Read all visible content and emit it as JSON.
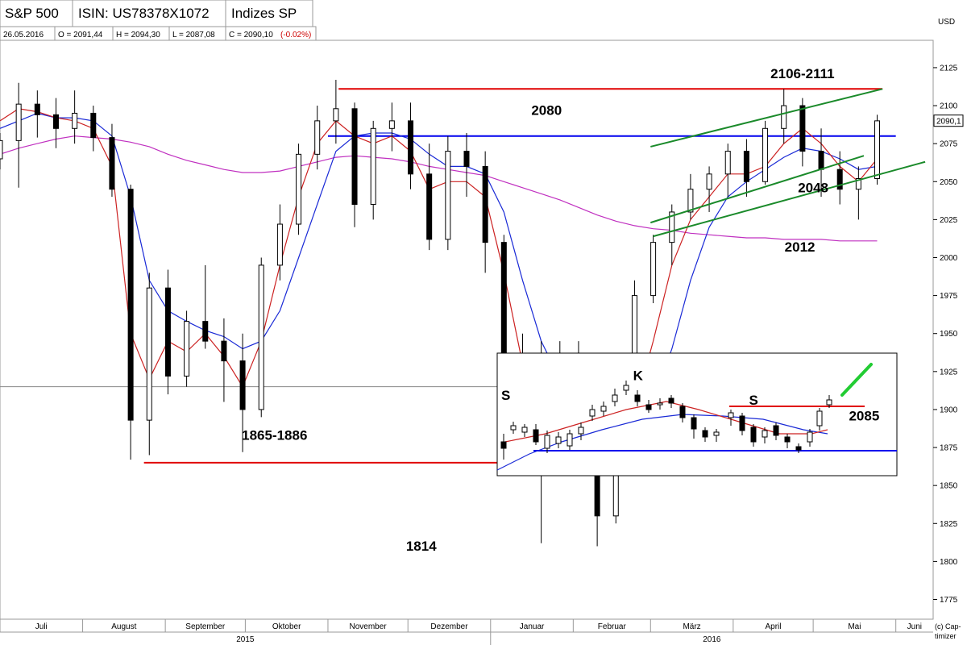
{
  "header": {
    "name": "S&P 500",
    "isin": "ISIN: US78378X1072",
    "index": "Indizes SP",
    "date": "26.05.2016",
    "open": "O = 2091,44",
    "high": "H = 2094,30",
    "low": "L = 2087,08",
    "close": "C = 2090,10",
    "change": "(-0.02%)",
    "change_color": "#cc0000",
    "currency": "USD"
  },
  "footer": {
    "copyright_line1": "(c) Cap-",
    "copyright_line2": "timizer"
  },
  "colors": {
    "resistance": "#e00000",
    "support": "#0000ee",
    "channel": "#1a8a2a",
    "ma_short": "#cc2222",
    "ma_mid": "#1a2ad6",
    "ma_long": "#c030c0",
    "candles": "#000000"
  },
  "chart_data": {
    "type": "candlestick",
    "title": "S&P 500",
    "ylim": [
      1762,
      2143
    ],
    "y_ticks": [
      1775,
      1800,
      1825,
      1850,
      1875,
      1900,
      1925,
      1950,
      1975,
      2000,
      2025,
      2050,
      2075,
      2100,
      2125
    ],
    "last_price_label": "2090,1",
    "x_month_labels": [
      "Juli",
      "August",
      "September",
      "Oktober",
      "November",
      "Dezember",
      "Januar",
      "Februar",
      "März",
      "April",
      "Mai",
      "Juni"
    ],
    "x_year_labels": [
      "2015",
      "2016"
    ],
    "x_range": [
      "2015-07-01",
      "2016-06-15"
    ],
    "horizontal_levels": [
      {
        "price": 2111,
        "from": "2015-11-05",
        "to": "2016-05-27",
        "color": "resistance"
      },
      {
        "price": 2080,
        "from": "2015-11-01",
        "to": "2016-06-01",
        "color": "support"
      },
      {
        "price": 1865,
        "from": "2015-08-24",
        "to": "2016-01-20",
        "color": "resistance"
      },
      {
        "price": 1915,
        "from": "2015-07-01",
        "to": "2016-01-20",
        "color": "neutral"
      }
    ],
    "trendlines": [
      {
        "from": [
          "2016-03-01",
          2073
        ],
        "to": [
          "2016-05-27",
          2111
        ]
      },
      {
        "from": [
          "2016-03-01",
          2023
        ],
        "to": [
          "2016-05-20",
          2067
        ]
      },
      {
        "from": [
          "2016-03-02",
          2014
        ],
        "to": [
          "2016-06-12",
          2063
        ]
      }
    ],
    "annotations": [
      {
        "text": "2106-2111",
        "x": "2016-04-27",
        "y": 2118
      },
      {
        "text": "2080",
        "x": "2016-01-22",
        "y": 2094
      },
      {
        "text": "2048",
        "x": "2016-05-01",
        "y": 2043
      },
      {
        "text": "2012",
        "x": "2016-04-26",
        "y": 2004
      },
      {
        "text": "1865-1886",
        "x": "2015-10-12",
        "y": 1880
      },
      {
        "text": "1814",
        "x": "2015-12-06",
        "y": 1807
      }
    ],
    "ohlc": [
      {
        "d": "2015-07-01",
        "o": 2065,
        "h": 2082,
        "l": 2058,
        "c": 2077
      },
      {
        "d": "2015-07-08",
        "o": 2077,
        "h": 2115,
        "l": 2046,
        "c": 2101
      },
      {
        "d": "2015-07-15",
        "o": 2101,
        "h": 2110,
        "l": 2079,
        "c": 2094
      },
      {
        "d": "2015-07-22",
        "o": 2094,
        "h": 2105,
        "l": 2072,
        "c": 2085
      },
      {
        "d": "2015-07-29",
        "o": 2085,
        "h": 2110,
        "l": 2075,
        "c": 2095
      },
      {
        "d": "2015-08-05",
        "o": 2095,
        "h": 2100,
        "l": 2070,
        "c": 2079
      },
      {
        "d": "2015-08-12",
        "o": 2079,
        "h": 2088,
        "l": 2040,
        "c": 2045
      },
      {
        "d": "2015-08-19",
        "o": 2045,
        "h": 2048,
        "l": 1867,
        "c": 1893
      },
      {
        "d": "2015-08-26",
        "o": 1893,
        "h": 1990,
        "l": 1870,
        "c": 1980
      },
      {
        "d": "2015-09-02",
        "o": 1980,
        "h": 1992,
        "l": 1910,
        "c": 1922
      },
      {
        "d": "2015-09-09",
        "o": 1922,
        "h": 1965,
        "l": 1915,
        "c": 1958
      },
      {
        "d": "2015-09-16",
        "o": 1958,
        "h": 1995,
        "l": 1940,
        "c": 1945
      },
      {
        "d": "2015-09-23",
        "o": 1945,
        "h": 1960,
        "l": 1905,
        "c": 1932
      },
      {
        "d": "2015-09-30",
        "o": 1932,
        "h": 1950,
        "l": 1872,
        "c": 1900
      },
      {
        "d": "2015-10-07",
        "o": 1900,
        "h": 2000,
        "l": 1895,
        "c": 1995
      },
      {
        "d": "2015-10-14",
        "o": 1995,
        "h": 2035,
        "l": 1985,
        "c": 2022
      },
      {
        "d": "2015-10-21",
        "o": 2022,
        "h": 2075,
        "l": 2015,
        "c": 2068
      },
      {
        "d": "2015-10-28",
        "o": 2068,
        "h": 2100,
        "l": 2058,
        "c": 2090
      },
      {
        "d": "2015-11-04",
        "o": 2090,
        "h": 2117,
        "l": 2075,
        "c": 2098
      },
      {
        "d": "2015-11-11",
        "o": 2098,
        "h": 2102,
        "l": 2020,
        "c": 2035
      },
      {
        "d": "2015-11-18",
        "o": 2035,
        "h": 2090,
        "l": 2025,
        "c": 2085
      },
      {
        "d": "2015-11-25",
        "o": 2085,
        "h": 2102,
        "l": 2070,
        "c": 2090
      },
      {
        "d": "2015-12-02",
        "o": 2090,
        "h": 2102,
        "l": 2045,
        "c": 2055
      },
      {
        "d": "2015-12-09",
        "o": 2055,
        "h": 2075,
        "l": 2005,
        "c": 2012
      },
      {
        "d": "2015-12-16",
        "o": 2012,
        "h": 2080,
        "l": 2005,
        "c": 2070
      },
      {
        "d": "2015-12-23",
        "o": 2070,
        "h": 2082,
        "l": 2040,
        "c": 2060
      },
      {
        "d": "2015-12-30",
        "o": 2060,
        "h": 2070,
        "l": 1990,
        "c": 2010
      },
      {
        "d": "2016-01-06",
        "o": 2010,
        "h": 2015,
        "l": 1920,
        "c": 1935
      },
      {
        "d": "2016-01-13",
        "o": 1935,
        "h": 1950,
        "l": 1860,
        "c": 1880
      },
      {
        "d": "2016-01-20",
        "o": 1880,
        "h": 1945,
        "l": 1812,
        "c": 1915
      },
      {
        "d": "2016-01-27",
        "o": 1915,
        "h": 1945,
        "l": 1870,
        "c": 1935
      },
      {
        "d": "2016-02-03",
        "o": 1935,
        "h": 1945,
        "l": 1860,
        "c": 1880
      },
      {
        "d": "2016-02-10",
        "o": 1880,
        "h": 1885,
        "l": 1810,
        "c": 1830
      },
      {
        "d": "2016-02-17",
        "o": 1830,
        "h": 1935,
        "l": 1825,
        "c": 1925
      },
      {
        "d": "2016-02-24",
        "o": 1925,
        "h": 1985,
        "l": 1915,
        "c": 1975
      },
      {
        "d": "2016-03-02",
        "o": 1975,
        "h": 2015,
        "l": 1970,
        "c": 2010
      },
      {
        "d": "2016-03-09",
        "o": 2010,
        "h": 2035,
        "l": 1995,
        "c": 2030
      },
      {
        "d": "2016-03-16",
        "o": 2030,
        "h": 2055,
        "l": 2025,
        "c": 2045
      },
      {
        "d": "2016-03-23",
        "o": 2045,
        "h": 2060,
        "l": 2030,
        "c": 2055
      },
      {
        "d": "2016-03-30",
        "o": 2055,
        "h": 2075,
        "l": 2040,
        "c": 2070
      },
      {
        "d": "2016-04-06",
        "o": 2070,
        "h": 2078,
        "l": 2040,
        "c": 2050
      },
      {
        "d": "2016-04-13",
        "o": 2050,
        "h": 2090,
        "l": 2048,
        "c": 2085
      },
      {
        "d": "2016-04-20",
        "o": 2085,
        "h": 2111,
        "l": 2075,
        "c": 2100
      },
      {
        "d": "2016-04-27",
        "o": 2100,
        "h": 2105,
        "l": 2060,
        "c": 2070
      },
      {
        "d": "2016-05-04",
        "o": 2070,
        "h": 2085,
        "l": 2040,
        "c": 2058
      },
      {
        "d": "2016-05-11",
        "o": 2058,
        "h": 2070,
        "l": 2035,
        "c": 2045
      },
      {
        "d": "2016-05-18",
        "o": 2045,
        "h": 2060,
        "l": 2025,
        "c": 2052
      },
      {
        "d": "2016-05-25",
        "o": 2052,
        "h": 2094,
        "l": 2048,
        "c": 2090
      }
    ],
    "ma_short": [
      2090,
      2098,
      2096,
      2092,
      2090,
      2085,
      2060,
      1950,
      1920,
      1945,
      1938,
      1950,
      1935,
      1915,
      1945,
      1995,
      2040,
      2075,
      2090,
      2080,
      2075,
      2080,
      2070,
      2045,
      2050,
      2050,
      2040,
      1990,
      1930,
      1900,
      1905,
      1910,
      1880,
      1870,
      1900,
      1945,
      1995,
      2025,
      2040,
      2055,
      2055,
      2060,
      2075,
      2085,
      2075,
      2060,
      2050,
      2065
    ],
    "ma_mid": [
      2085,
      2090,
      2095,
      2092,
      2092,
      2090,
      2080,
      2040,
      1985,
      1965,
      1958,
      1952,
      1948,
      1940,
      1945,
      1965,
      2000,
      2035,
      2070,
      2080,
      2082,
      2082,
      2078,
      2068,
      2060,
      2060,
      2055,
      2030,
      1985,
      1945,
      1920,
      1905,
      1890,
      1880,
      1885,
      1905,
      1940,
      1985,
      2020,
      2040,
      2050,
      2058,
      2066,
      2072,
      2070,
      2065,
      2058,
      2060
    ],
    "ma_long": [
      2068,
      2072,
      2075,
      2078,
      2080,
      2079,
      2078,
      2076,
      2073,
      2068,
      2064,
      2061,
      2058,
      2056,
      2056,
      2057,
      2060,
      2063,
      2066,
      2067,
      2066,
      2065,
      2063,
      2060,
      2058,
      2056,
      2054,
      2050,
      2046,
      2042,
      2038,
      2033,
      2028,
      2024,
      2021,
      2019,
      2018,
      2016,
      2015,
      2014,
      2013,
      2013,
      2012,
      2012,
      2012,
      2011,
      2011,
      2011
    ],
    "inset": {
      "labels": [
        {
          "text": "S",
          "x": 0.01,
          "y": 0.38
        },
        {
          "text": "K",
          "x": 0.34,
          "y": 0.22
        },
        {
          "text": "S",
          "x": 0.63,
          "y": 0.42
        },
        {
          "text": "2085",
          "x": 0.88,
          "y": 0.55
        }
      ],
      "note": "Inset schematic: S-K-S pattern with resistance at 2085 and support base"
    }
  }
}
